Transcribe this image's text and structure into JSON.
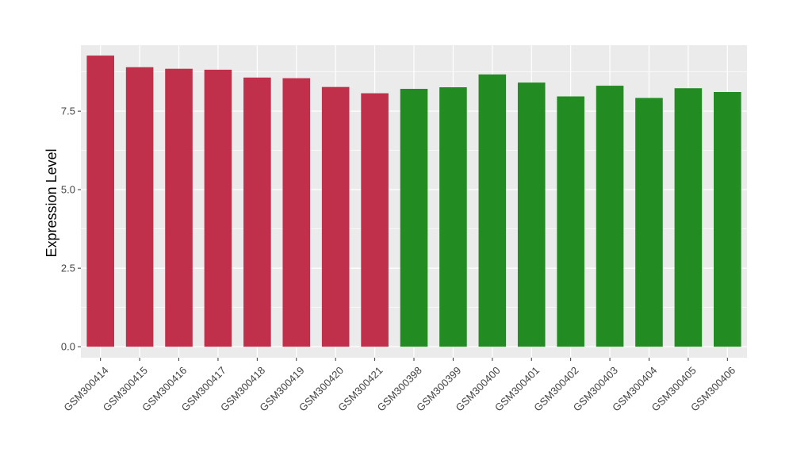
{
  "chart_data": {
    "type": "bar",
    "title": "",
    "xlabel": "",
    "ylabel": "Expression Level",
    "ylim": [
      -0.35,
      9.6
    ],
    "y_ticks": [
      0.0,
      2.5,
      5.0,
      7.5
    ],
    "y_tick_labels": [
      "0.0",
      "2.5",
      "5.0",
      "7.5"
    ],
    "grid": true,
    "legend": "none",
    "categories": [
      "GSM300414",
      "GSM300415",
      "GSM300416",
      "GSM300417",
      "GSM300418",
      "GSM300419",
      "GSM300420",
      "GSM300421",
      "GSM300398",
      "GSM300399",
      "GSM300400",
      "GSM300401",
      "GSM300402",
      "GSM300403",
      "GSM300404",
      "GSM300405",
      "GSM300406"
    ],
    "values": [
      9.27,
      8.9,
      8.85,
      8.82,
      8.57,
      8.55,
      8.27,
      8.07,
      8.21,
      8.26,
      8.67,
      8.41,
      7.97,
      8.31,
      7.92,
      8.23,
      8.11
    ],
    "groups": [
      "a",
      "a",
      "a",
      "a",
      "a",
      "a",
      "a",
      "a",
      "b",
      "b",
      "b",
      "b",
      "b",
      "b",
      "b",
      "b",
      "b"
    ],
    "colors": {
      "a": "#c0304a",
      "b": "#228b22",
      "panel": "#ebebeb",
      "grid": "#ffffff"
    }
  }
}
